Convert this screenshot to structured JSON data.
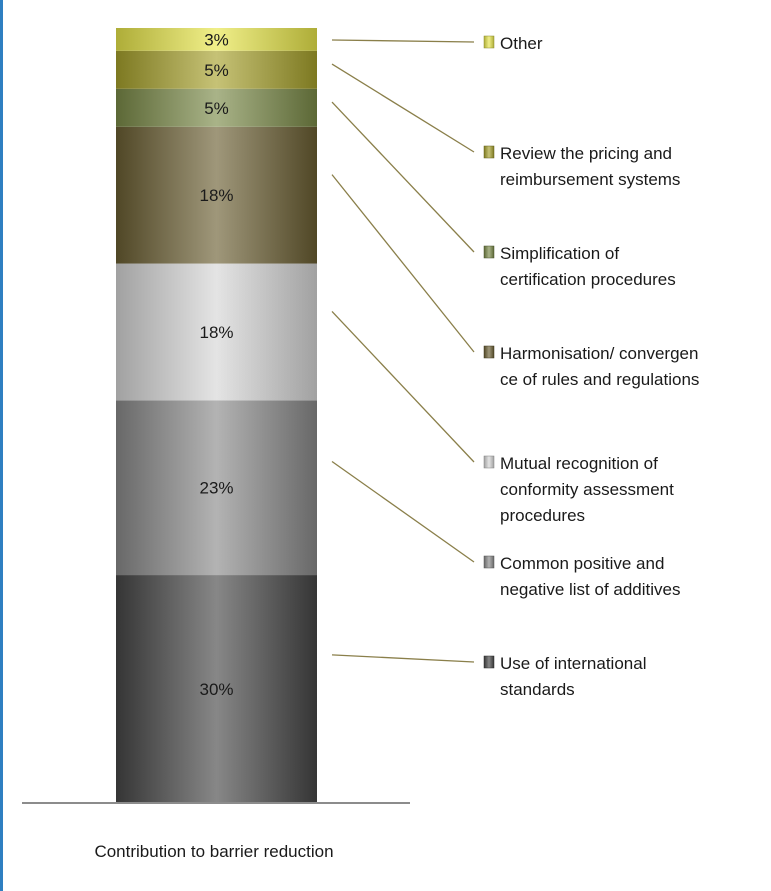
{
  "chart_data": {
    "type": "bar",
    "stacked": true,
    "categories": [
      "Contribution to barrier reduction"
    ],
    "xlabel": "Contribution to barrier reduction",
    "ylim": [
      0,
      102
    ],
    "grid": false,
    "legend_position": "right",
    "series": [
      {
        "name": "Use of international standards",
        "values": [
          30
        ],
        "label": "30%",
        "color": "#474747",
        "legend_lines": [
          "Use of international",
          "standards"
        ]
      },
      {
        "name": "Common positive and negative list of additives",
        "values": [
          23
        ],
        "label": "23%",
        "color": "#8a8a8a",
        "legend_lines": [
          "Common positive and",
          "negative list of additives"
        ]
      },
      {
        "name": "Mutual recognition of conformity assessment procedures",
        "values": [
          18
        ],
        "label": "18%",
        "color": "#d6d6d6",
        "legend_lines": [
          "Mutual recognition of",
          "conformity assessment",
          "procedures"
        ]
      },
      {
        "name": "Harmonisation/ convergence of rules and regulations",
        "values": [
          18
        ],
        "label": "18%",
        "color": "#6b5f33",
        "legend_lines": [
          "Harmonisation/ convergen",
          "ce of rules and regulations"
        ]
      },
      {
        "name": "Simplification of certification procedures",
        "values": [
          5
        ],
        "label": "5%",
        "color": "#7a8a48",
        "legend_lines": [
          "Simplification of",
          "certification procedures"
        ]
      },
      {
        "name": "Review the pricing and reimbursement systems",
        "values": [
          5
        ],
        "label": "5%",
        "color": "#a7a12c",
        "legend_lines": [
          "Review the pricing and",
          "reimbursement systems"
        ]
      },
      {
        "name": "Other",
        "values": [
          3
        ],
        "label": "3%",
        "color": "#e8e64a",
        "legend_lines": [
          "Other"
        ]
      }
    ]
  }
}
